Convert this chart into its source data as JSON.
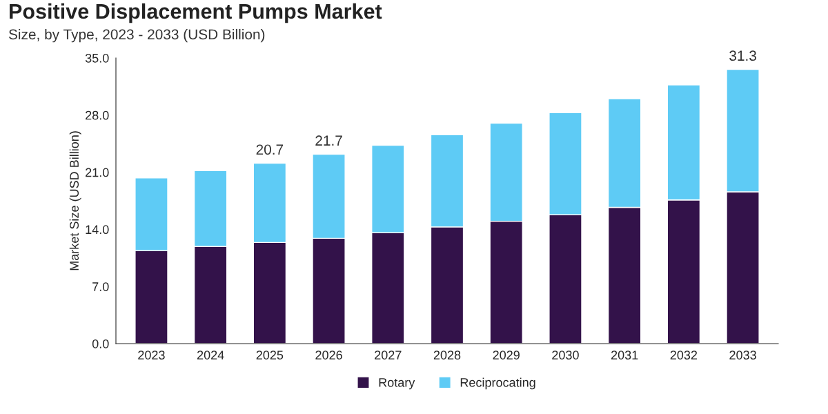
{
  "chart_data": {
    "type": "bar",
    "title": "Positive Displacement Pumps Market",
    "subtitle": "Size, by Type, 2023 - 2033 (USD Billion)",
    "ylabel": "Market Size (USD Billion)",
    "categories": [
      "2023",
      "2024",
      "2025",
      "2026",
      "2027",
      "2028",
      "2029",
      "2030",
      "2031",
      "2032",
      "2033"
    ],
    "stacked": true,
    "series": [
      {
        "name": "Rotary",
        "color": "#33124a",
        "values": [
          11.4,
          11.9,
          12.4,
          12.9,
          13.6,
          14.3,
          15.0,
          15.8,
          16.7,
          17.6,
          18.6
        ]
      },
      {
        "name": "Reciprocating",
        "color": "#5ecbf5",
        "values": [
          8.9,
          9.3,
          9.7,
          10.3,
          10.7,
          11.3,
          12.0,
          12.5,
          13.3,
          14.1,
          15.0
        ]
      }
    ],
    "annotations": [
      {
        "text": "20.7",
        "x": "2025",
        "y": 22.1
      },
      {
        "text": "21.7",
        "x": "2026",
        "y": 23.2
      },
      {
        "text": "31.3",
        "x": "2033",
        "y": 33.6
      }
    ],
    "ylim": [
      0,
      35
    ],
    "yticks": [
      {
        "value": 0,
        "label": "0.0"
      },
      {
        "value": 7,
        "label": "7.0"
      },
      {
        "value": 14,
        "label": "14.0"
      },
      {
        "value": 21,
        "label": "21.0"
      },
      {
        "value": 28,
        "label": "28.0"
      },
      {
        "value": 35,
        "label": "35.0"
      }
    ],
    "grid": false,
    "legend": "bottom"
  }
}
